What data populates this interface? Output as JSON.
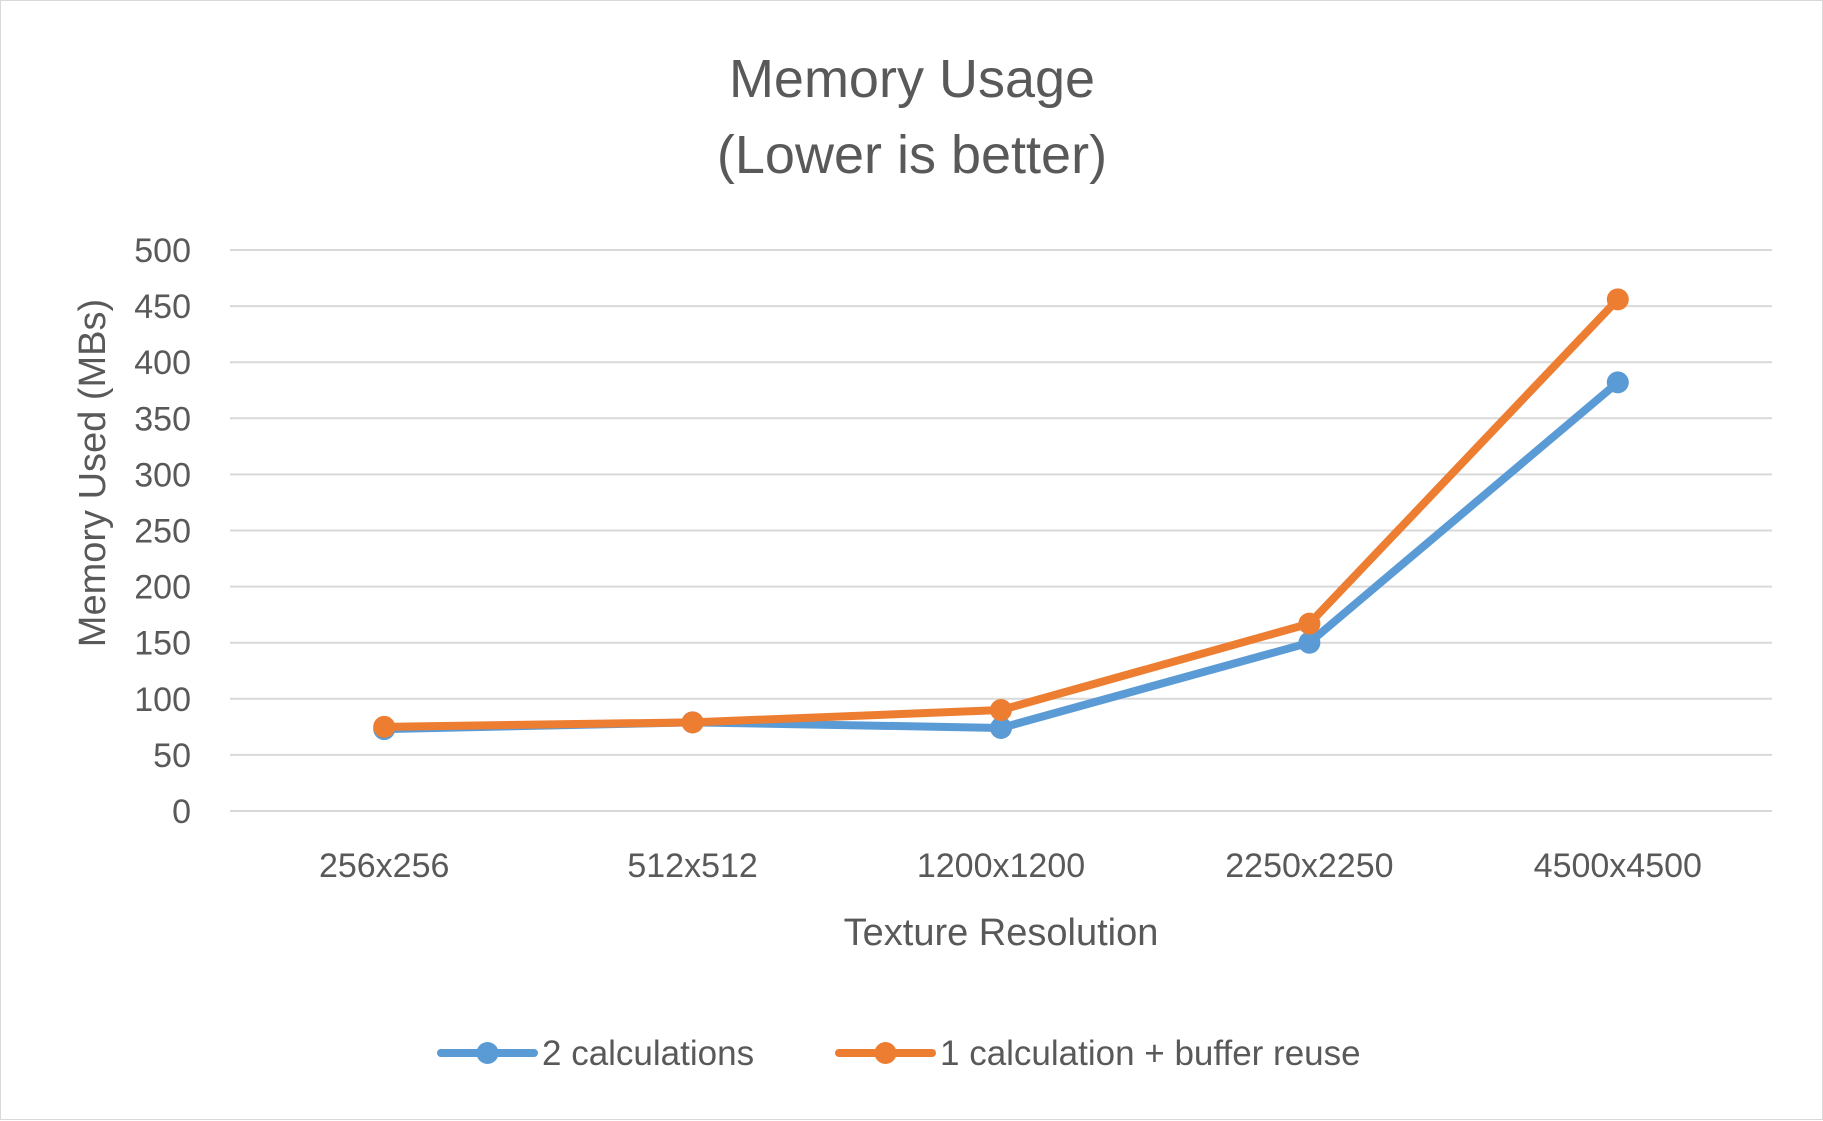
{
  "chart_data": {
    "type": "line",
    "title": [
      "Memory Usage",
      "(Lower is better)"
    ],
    "xlabel": "Texture Resolution",
    "ylabel": "Memory Used (MBs)",
    "categories": [
      "256x256",
      "512x512",
      "1200x1200",
      "2250x2250",
      "4500x4500"
    ],
    "ylim": [
      0,
      500
    ],
    "yticks": [
      "0",
      "50",
      "100",
      "150",
      "200",
      "250",
      "300",
      "350",
      "400",
      "450",
      "500"
    ],
    "grid": true,
    "legend_position": "bottom",
    "series": [
      {
        "name": "2 calculations",
        "color": "#5b9bd5",
        "values": [
          73,
          79,
          74,
          150,
          382
        ]
      },
      {
        "name": "1 calculation + buffer reuse",
        "color": "#ed7d31",
        "values": [
          75,
          79,
          90,
          167,
          456
        ]
      }
    ]
  }
}
